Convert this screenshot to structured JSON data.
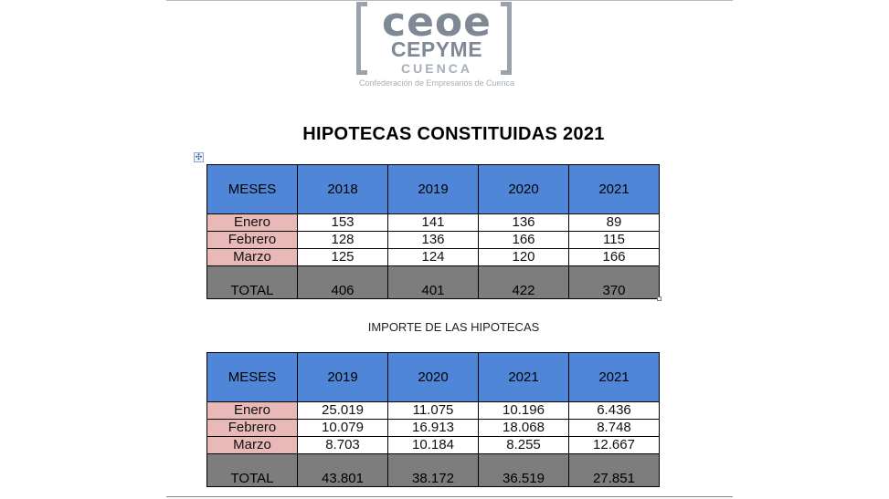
{
  "logo": {
    "line1": "ceoe",
    "line2": "CEPYME",
    "line3": "CUENCA",
    "line4": "Confederación de Empresarios de Cuenca"
  },
  "title": "HIPOTECAS CONSTITUIDAS  2021",
  "table1": {
    "headers": [
      "MESES",
      "2018",
      "2019",
      "2020",
      "2021"
    ],
    "rows": [
      [
        "Enero",
        "153",
        "141",
        "136",
        "89"
      ],
      [
        "Febrero",
        "128",
        "136",
        "166",
        "115"
      ],
      [
        "Marzo",
        "125",
        "124",
        "120",
        "166"
      ]
    ],
    "total": [
      "TOTAL",
      "406",
      "401",
      "422",
      "370"
    ]
  },
  "subtitle": "IMPORTE DE LAS HIPOTECAS",
  "table2": {
    "headers": [
      "MESES",
      "2019",
      "2020",
      "2021",
      "2021"
    ],
    "rows": [
      [
        "Enero",
        "25.019",
        "11.075",
        "10.196",
        "6.436"
      ],
      [
        "Febrero",
        "10.079",
        "16.913",
        "18.068",
        "8.748"
      ],
      [
        "Marzo",
        "8.703",
        "10.184",
        "8.255",
        "12.667"
      ]
    ],
    "total": [
      "TOTAL",
      "43.801",
      "38.172",
      "36.519",
      "27.851"
    ]
  },
  "colors": {
    "header_blue": "#4f86d8",
    "month_pink": "#e8b9b7",
    "total_gray": "#7d7d7d"
  }
}
